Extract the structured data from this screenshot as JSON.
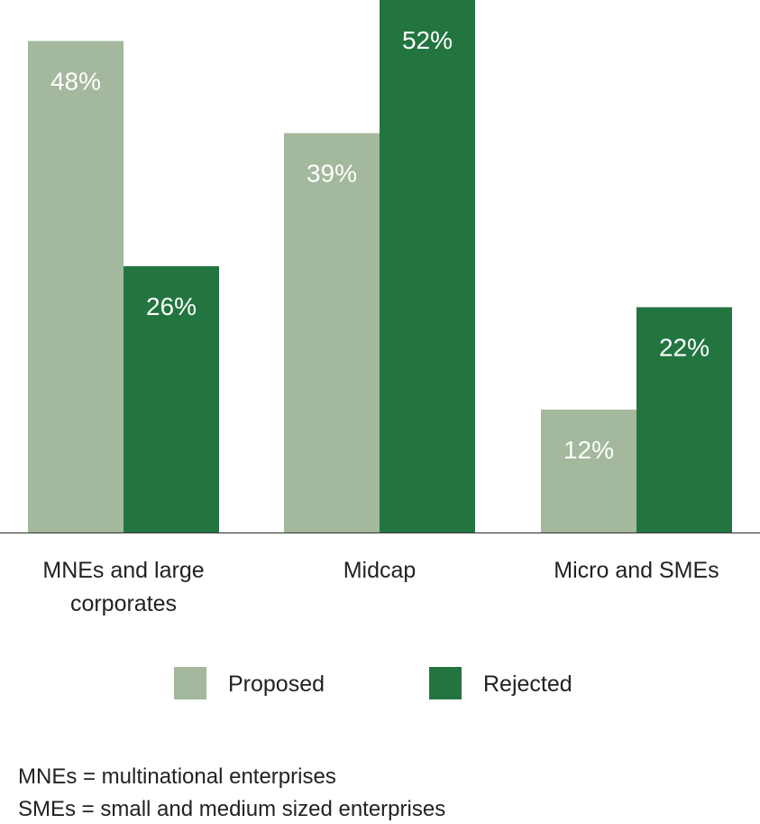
{
  "chart_data": {
    "type": "bar",
    "title": "",
    "xlabel": "",
    "ylabel": "",
    "ylim": [
      0,
      52
    ],
    "grid": false,
    "categories": [
      [
        "MNEs and large",
        "corporates"
      ],
      [
        "Midcap"
      ],
      [
        "Micro and SMEs"
      ]
    ],
    "series": [
      {
        "name": "Proposed",
        "color": "#a3b89c",
        "values": [
          48,
          39,
          12
        ],
        "labels": [
          "48%",
          "39%",
          "12%"
        ]
      },
      {
        "name": "Rejected",
        "color": "#237540",
        "values": [
          26,
          52,
          22
        ],
        "labels": [
          "26%",
          "52%",
          "22%"
        ]
      }
    ],
    "legend": "bottom-center"
  },
  "footnotes": [
    "MNEs = multinational enterprises",
    "SMEs = small and medium sized enterprises"
  ]
}
